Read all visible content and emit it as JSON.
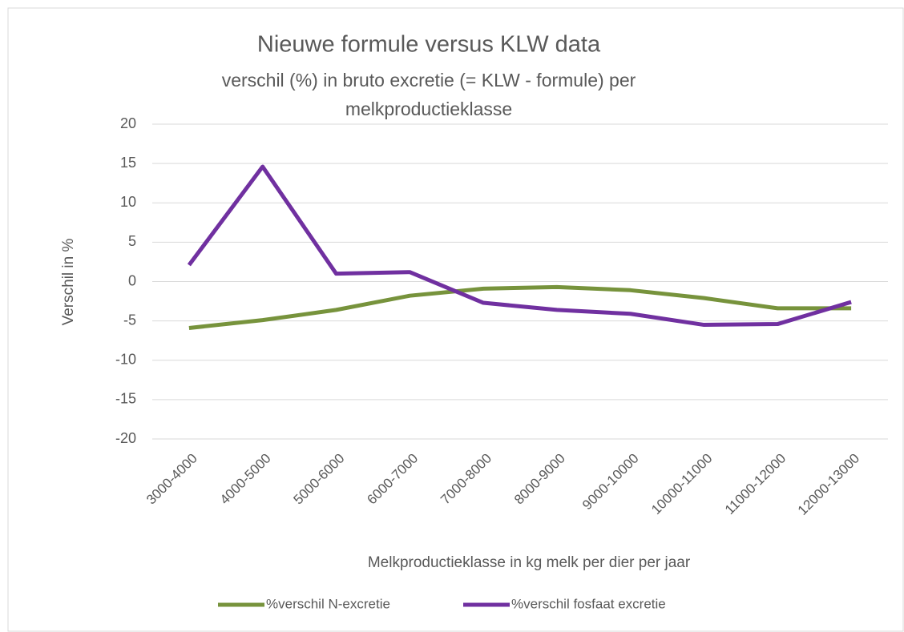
{
  "chart_data": {
    "type": "line",
    "title": "Nieuwe formule versus KLW data",
    "subtitle": "verschil (%) in bruto excretie (= KLW - formule) per melkproductieklasse",
    "x_label": "Melkproductieklasse in kg melk per dier per jaar",
    "y_label": "Verschil in %",
    "categories": [
      "3000-4000",
      "4000-5000",
      "5000-6000",
      "6000-7000",
      "7000-8000",
      "8000-9000",
      "9000-10000",
      "10000-11000",
      "11000-12000",
      "12000-13000"
    ],
    "series": [
      {
        "name": "%verschil N-excretie",
        "color": "#77933c",
        "values": [
          -5.9,
          -4.9,
          -3.6,
          -1.8,
          -0.9,
          -0.7,
          -1.1,
          -2.1,
          -3.4,
          -3.4
        ]
      },
      {
        "name": "%verschil fosfaat excretie",
        "color": "#7030a0",
        "values": [
          2.1,
          14.6,
          1.0,
          1.2,
          -2.7,
          -3.6,
          -4.1,
          -5.5,
          -5.4,
          -2.6
        ]
      }
    ],
    "ylim": [
      -20,
      20
    ],
    "yticks": [
      -20,
      -15,
      -10,
      -5,
      0,
      5,
      10,
      15,
      20
    ],
    "grid": true,
    "legend": "bottom"
  }
}
